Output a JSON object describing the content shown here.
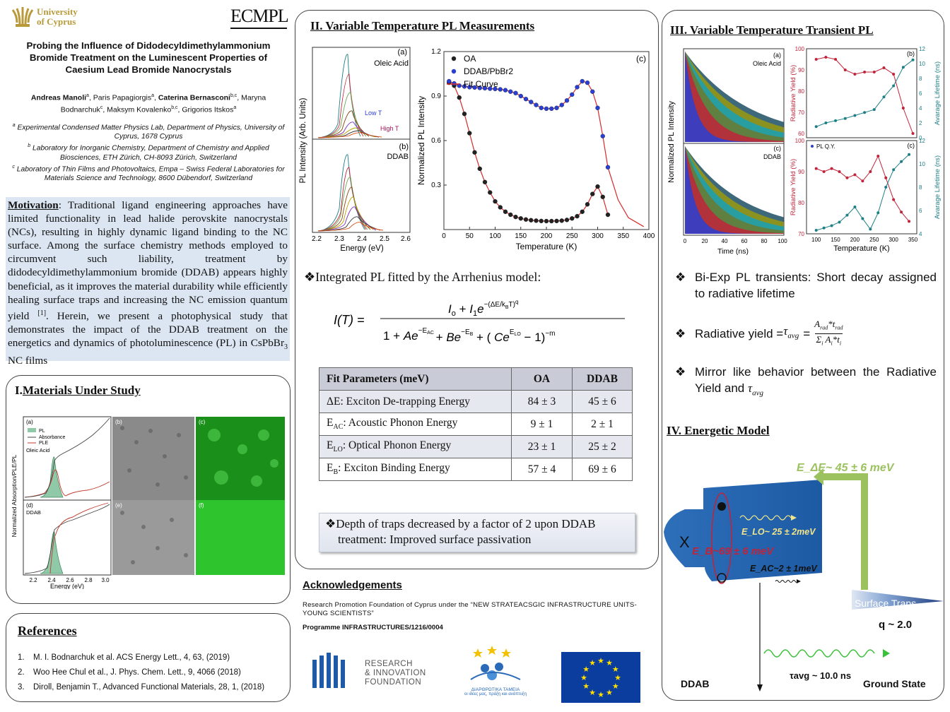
{
  "header": {
    "university": [
      "University",
      "of Cyprus"
    ],
    "lab_logo": "ECMPL",
    "title": "Probing the Influence of Didodecyldimethylammonium Bromide Treatment on the Luminescent Properties of Caesium Lead Bromide Nanocrystals",
    "authors": [
      {
        "name": "Andreas Manoli",
        "sup": "a",
        "bold": true
      },
      {
        "name": "Paris Papagiorgis",
        "sup": "a",
        "bold": false
      },
      {
        "name": "Caterina Bernasconi",
        "sup": "b,c",
        "bold": true
      },
      {
        "name": "Maryna Bodnarchuk",
        "sup": "c",
        "bold": false
      },
      {
        "name": "Maksym Kovalenko",
        "sup": "b,c",
        "bold": false
      },
      {
        "name": "Grigorios Itskos",
        "sup": "a",
        "bold": false
      }
    ],
    "affiliations": [
      {
        "sup": "a",
        "text": "Experimental Condensed Matter Physics Lab, Department of Physics, University of Cyprus, 1678 Cyprus"
      },
      {
        "sup": "b",
        "text": "Laboratory for Inorganic Chemistry, Department of Chemistry and Applied Biosciences, ETH Zürich, CH-8093 Zürich, Switzerland"
      },
      {
        "sup": "c",
        "text": "Laboratory of Thin Films and Photovoltaics, Empa – Swiss Federal Laboratories for Materials Science and Technology, 8600 Dübendorf, Switzerland"
      }
    ]
  },
  "motivation": {
    "label": "Motivation",
    "text": ": Traditional ligand engineering approaches have limited functionality in lead halide perovskite nanocrystals (NCs), resulting in highly dynamic ligand binding to the NC surface. Among the surface chemistry methods employed to circumvent such liability, treatment by didodecyldimethylammonium bromide (DDAB) appears highly beneficial, as it improves the material durability while efficiently healing surface traps and increasing the NC emission quantum yield ",
    "cite": "[1]",
    "text2": ". Herein, we present a photophysical study that demonstrates the impact of the DDAB treatment on the energetics and dynamics of photoluminescence (PL) in CsPbBr",
    "sub": "3",
    "text3": " NC films"
  },
  "materials": {
    "title_num": "I.",
    "title": "Materials Under Study",
    "legend": [
      "PL",
      "Absorbance",
      "PLE"
    ],
    "ylabel": "Normalized Absorption/PLE/PL",
    "xlabel": "Energy (eV)",
    "xticks": [
      "2.2",
      "2.4",
      "2.6",
      "2.8",
      "3.0"
    ],
    "panels": [
      "(a)",
      "(b)",
      "(c)",
      "(d)",
      "(e)",
      "(f)"
    ],
    "samples": [
      "Oleic Acid",
      "DDAB"
    ],
    "colors": {
      "pl_fill": "#8fc9a8",
      "absorbance": "#444444",
      "ple": "#c0392b",
      "fluor": "#22c422"
    }
  },
  "references": {
    "title": "References",
    "items": [
      "M. I. Bodnarchuk et al. ACS Energy Lett., 4, 63, (2019)",
      "Woo Hee Chul et al., J. Phys. Chem. Lett., 9, 4066 (2018)",
      "Diroll, Benjamin T., Advanced Functional Materials, 28, 1, (2018)"
    ]
  },
  "section2": {
    "title": "II. Variable Temperature PL Measurements",
    "spectra": {
      "ylabel": "PL Intensity (Arb. Units)",
      "xlabel": "Energy (eV)",
      "xticks": [
        "2.2",
        "2.3",
        "2.4",
        "2.5",
        "2.6"
      ],
      "panel_a": "(a)",
      "sample_a": "Oleic Acid",
      "panel_b": "(b)",
      "sample_b": "DDAB",
      "low_t": "Low T",
      "high_t": "High T"
    },
    "arrhenius_note": "Integrated PL fitted by the Arrhenius model:",
    "table": {
      "headers": [
        "Fit Parameters (meV)",
        "OA",
        "DDAB"
      ],
      "rows": [
        {
          "sym": "ΔE",
          "sub": "",
          "label": ": Exciton De-trapping Energy",
          "oa": "84 ± 3",
          "ddab": "45 ± 6"
        },
        {
          "sym": "E",
          "sub": "AC",
          "label": ": Acoustic Phonon Energy",
          "oa": "9 ± 1",
          "ddab": "2 ± 1"
        },
        {
          "sym": "E",
          "sub": "LO",
          "label": ": Optical Phonon Energy",
          "oa": "23 ± 1",
          "ddab": "25 ± 2"
        },
        {
          "sym": "E",
          "sub": "B",
          "label": ": Exciton Binding Energy",
          "oa": "57 ± 4",
          "ddab": "69 ± 6"
        }
      ]
    },
    "conclusion": [
      "Depth of traps decreased by a factor of 2 upon DDAB",
      "treatment:  Improved surface passivation"
    ]
  },
  "chart_data": [
    {
      "type": "scatter",
      "panel": "(c)",
      "xlabel": "Temperature (K)",
      "ylabel": "Normalized PL Intensity",
      "xlim": [
        0,
        400
      ],
      "ylim": [
        0,
        1.2
      ],
      "xticks": [
        0,
        50,
        100,
        150,
        200,
        250,
        300,
        350,
        400
      ],
      "yticks": [
        0.3,
        0.6,
        0.9,
        1.2
      ],
      "legend_position": "top-left",
      "series": [
        {
          "name": "OA",
          "color": "#222222",
          "x": [
            10,
            20,
            30,
            40,
            50,
            60,
            70,
            80,
            90,
            100,
            110,
            120,
            130,
            140,
            150,
            160,
            170,
            180,
            190,
            200,
            210,
            220,
            230,
            240,
            250,
            260,
            270,
            280,
            290,
            300,
            310,
            320
          ],
          "y": [
            0.99,
            0.97,
            0.89,
            0.78,
            0.65,
            0.52,
            0.41,
            0.32,
            0.25,
            0.19,
            0.15,
            0.12,
            0.1,
            0.085,
            0.075,
            0.068,
            0.063,
            0.06,
            0.058,
            0.057,
            0.057,
            0.058,
            0.06,
            0.065,
            0.075,
            0.09,
            0.12,
            0.17,
            0.24,
            0.29,
            0.22,
            0.1
          ]
        },
        {
          "name": "DDAB/PbBr2",
          "color": "#2a3fd4",
          "x": [
            10,
            20,
            30,
            40,
            50,
            60,
            70,
            80,
            90,
            100,
            110,
            120,
            130,
            140,
            150,
            160,
            170,
            180,
            190,
            200,
            210,
            220,
            230,
            240,
            250,
            260,
            270,
            280,
            290,
            300,
            310,
            320
          ],
          "y": [
            1.0,
            0.985,
            0.97,
            0.965,
            0.96,
            0.958,
            0.955,
            0.953,
            0.95,
            0.948,
            0.945,
            0.94,
            0.93,
            0.92,
            0.9,
            0.88,
            0.86,
            0.84,
            0.82,
            0.815,
            0.815,
            0.82,
            0.84,
            0.87,
            0.91,
            0.96,
            1.0,
            0.99,
            0.93,
            0.82,
            0.63,
            0.42
          ]
        },
        {
          "name": "Fit Curve",
          "color": "#d62a2a"
        }
      ]
    },
    {
      "type": "scatter",
      "panel": "(b)",
      "ylabel": "Radiative Yield (%)",
      "y2label": "Avarage Lifetime (ns)",
      "ylim": [
        58,
        100
      ],
      "y2lim": [
        0,
        12
      ],
      "yticks": [
        60,
        70,
        80,
        90,
        100
      ],
      "y2ticks": [
        0,
        2,
        4,
        6,
        8,
        10,
        12
      ],
      "series": [
        {
          "name": "Radiative Yield",
          "color": "#c0243a",
          "x": [
            100,
            125,
            150,
            175,
            200,
            225,
            250,
            275,
            300,
            325,
            350
          ],
          "y": [
            95,
            96,
            95,
            90,
            88,
            89,
            89,
            91,
            88,
            72,
            60
          ]
        },
        {
          "name": "Average Lifetime",
          "color": "#1d7f86",
          "x": [
            100,
            125,
            150,
            175,
            200,
            225,
            250,
            275,
            300,
            325,
            350
          ],
          "y": [
            1.5,
            2.0,
            2.3,
            2.6,
            3.0,
            3.4,
            3.8,
            5.5,
            7.0,
            9.5,
            10.5
          ]
        }
      ]
    },
    {
      "type": "scatter",
      "panel": "(c)",
      "legend": "PL Q.Y.",
      "xlabel": "Temperature (K)",
      "ylabel": "Radiative Yield (%)",
      "y2label": "Avarage Lifetime (ns)",
      "xlim": [
        75,
        360
      ],
      "ylim": [
        70,
        100
      ],
      "y2lim": [
        4,
        12
      ],
      "xticks": [
        100,
        150,
        200,
        250,
        300,
        350
      ],
      "yticks": [
        70,
        80,
        90,
        100
      ],
      "y2ticks": [
        4,
        6,
        8,
        10,
        12
      ],
      "series": [
        {
          "name": "Radiative Yield",
          "color": "#c0243a",
          "x": [
            100,
            120,
            140,
            160,
            180,
            200,
            220,
            240,
            260,
            280,
            300,
            320,
            340
          ],
          "y": [
            91,
            90,
            91,
            90,
            88,
            89,
            87,
            90,
            95,
            88,
            81,
            77,
            74
          ]
        },
        {
          "name": "Average Lifetime",
          "color": "#1d7f86",
          "x": [
            100,
            120,
            140,
            160,
            180,
            200,
            220,
            240,
            260,
            280,
            300,
            320,
            340
          ],
          "y": [
            4.3,
            4.5,
            4.7,
            5.0,
            5.6,
            6.3,
            5.3,
            4.4,
            5.8,
            8.0,
            9.5,
            10.2,
            10.8
          ]
        }
      ]
    }
  ],
  "section3": {
    "title": "III. Variable Temperature Transient PL",
    "transient": {
      "ylabel": "Normalized PL Intensity",
      "xlabel": "Time (ns)",
      "xticks": [
        "0",
        "20",
        "40",
        "60",
        "80",
        "100"
      ],
      "panel_a": "(a)",
      "sample_a": "Oleic Acid",
      "panel_c": "(c)",
      "sample_c": "DDAB"
    },
    "temp_xlabel": "Temperature (K)",
    "bullets": [
      "Bi-Exp PL transients: Short decay assigned to radiative lifetime",
      "Radiative yield = ",
      "Mirror like behavior between the Radiative Yield and "
    ]
  },
  "section4": {
    "title": "IV. Energetic Model",
    "e_delta": "E_ΔE~ 45 ± 6 meV",
    "e_lo": "E_LO~ 25 ± 2meV",
    "e_b": "E_B~69 ± 6 meV",
    "e_ac": "E_AC~2 ± 1meV",
    "surface_traps": "Surface Traps",
    "q": "q ~ 2.0",
    "tau": "τavg ~ 10.0 ns",
    "ddab": "DDAB",
    "ground": "Ground State",
    "x_mark": "X"
  },
  "acknowledgements": {
    "title": "Acknowledgements",
    "text": "Research Promotion Foundation of Cyprus under the “NEW STRATEACSGIC INFRASTRUCTURE UNITS-YOUNG SCIENTISTS”",
    "programme": "Programme INFRASTRUCTURES/1216/0004",
    "rif": [
      "RESEARCH",
      "& INNOVATION",
      "FOUNDATION"
    ],
    "greek": [
      "ΔΙΑΡΘΡΩΤΙΚΑ ΤΑΜΕΙΑ",
      "οι ιδέες μας, πράξη και ανάπτυξη"
    ]
  }
}
